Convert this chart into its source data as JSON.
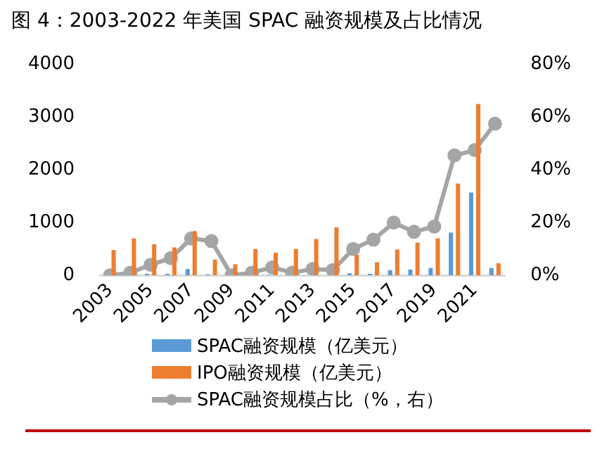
{
  "chart_data": {
    "type": "bar",
    "title": "图 4：2003-2022 年美国 SPAC 融资规模及占比情况",
    "categories": [
      "2003",
      null,
      "2005",
      null,
      "2007",
      null,
      "2009",
      null,
      "2011",
      null,
      "2013",
      null,
      "2015",
      null,
      "2017",
      null,
      "2019",
      null,
      "2021",
      null
    ],
    "series": [
      {
        "name": "SPAC融资规模（亿美元）",
        "color": "#5b9bd5",
        "values": [
          0,
          0,
          30,
          30,
          120,
          20,
          0,
          0,
          10,
          0,
          0,
          null,
          40,
          30,
          100,
          110,
          140,
          810,
          1570,
          140
        ]
      },
      {
        "name": "IPO融资规模（亿美元）",
        "color": "#ed7d31",
        "values": [
          480,
          700,
          590,
          530,
          840,
          300,
          210,
          500,
          430,
          500,
          690,
          910,
          390,
          250,
          490,
          620,
          700,
          1740,
          3250,
          230
        ]
      },
      {
        "name": "SPAC融资规模占比（%，右）",
        "color": "#a5a5a5",
        "type": "line",
        "axis": "y2",
        "values": [
          0,
          1,
          4,
          6.5,
          14,
          13,
          0,
          1,
          3,
          1,
          2.4,
          2,
          10,
          13.5,
          20,
          16.5,
          18.5,
          45.5,
          47.5,
          57.5
        ]
      }
    ],
    "ylim": [
      0,
      4000
    ],
    "yticks": [
      0,
      1000,
      2000,
      3000,
      4000
    ],
    "y2lim": [
      0,
      80
    ],
    "y2ticks": [
      {
        "value": 0,
        "label": "0%"
      },
      {
        "value": 20,
        "label": "20%"
      },
      {
        "value": 40,
        "label": "40%"
      },
      {
        "value": 60,
        "label": "60%"
      },
      {
        "value": 80,
        "label": "80%"
      }
    ],
    "grid": false,
    "legend": "bottom",
    "marker": "circle"
  }
}
